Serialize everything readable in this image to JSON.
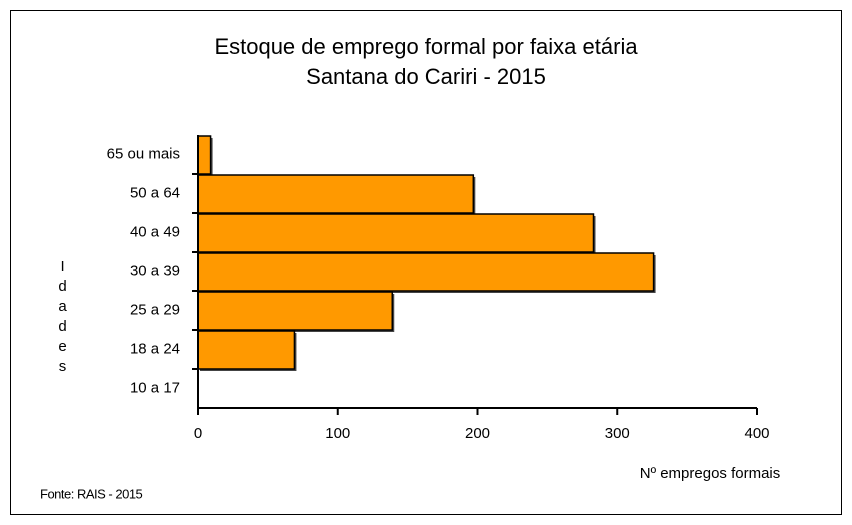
{
  "chart_data": {
    "type": "bar",
    "orientation": "horizontal",
    "title": "Estoque de emprego formal por faixa etária",
    "subtitle": "Santana do Cariri - 2015",
    "y_label": "Idades",
    "x_label": "Nº empregos formais",
    "note": "Fonte: RAIS - 2015",
    "categories": [
      "65 ou mais",
      "50 a 64",
      "40 a 49",
      "30 a 39",
      "25 a 29",
      "18 a 24",
      "10 a 17"
    ],
    "values": [
      9,
      197,
      283,
      326,
      139,
      69,
      0
    ],
    "color": "#ff9900",
    "xlim": [
      0,
      400
    ],
    "xticks": [
      0,
      100,
      200,
      300,
      400
    ],
    "grid": false
  }
}
